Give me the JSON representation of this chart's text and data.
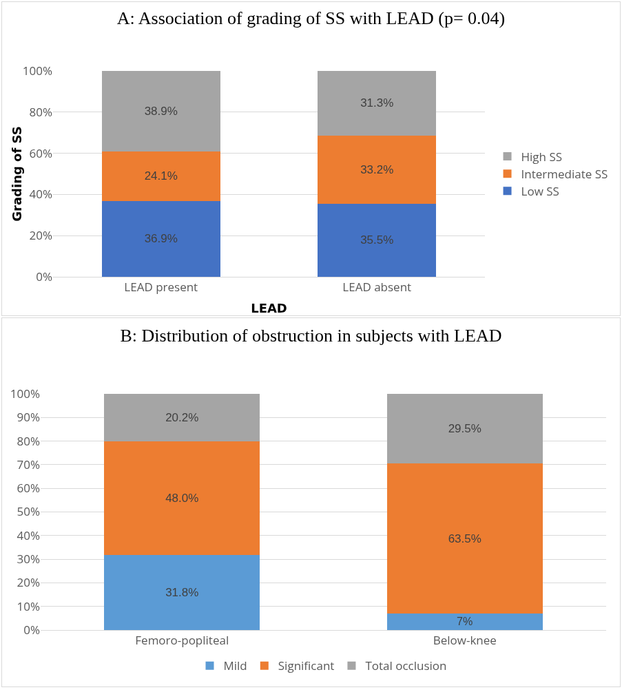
{
  "chart_data": [
    {
      "type": "bar",
      "title": "A: Association of grading of SS with LEAD (p= 0.04)",
      "xlabel": "LEAD",
      "ylabel": "Grading of SS",
      "categories": [
        "LEAD present",
        "LEAD absent"
      ],
      "stacked": true,
      "ylim": [
        0,
        100
      ],
      "yticks": [
        {
          "value": 0,
          "label": "0%"
        },
        {
          "value": 20,
          "label": "20%"
        },
        {
          "value": 40,
          "label": "40%"
        },
        {
          "value": 60,
          "label": "60%"
        },
        {
          "value": 80,
          "label": "80%"
        },
        {
          "value": 100,
          "label": "100%"
        }
      ],
      "grid": "y",
      "legend": "right",
      "series": [
        {
          "name": "Low SS",
          "color": "#4472c4",
          "values": [
            36.9,
            35.5
          ],
          "value_labels": [
            "36.9%",
            "35.5%"
          ]
        },
        {
          "name": "Intermediate SS",
          "color": "#ed7d31",
          "values": [
            24.1,
            33.2
          ],
          "value_labels": [
            "24.1%",
            "33.2%"
          ]
        },
        {
          "name": "High SS",
          "color": "#a5a5a5",
          "values": [
            38.9,
            31.3
          ],
          "value_labels": [
            "38.9%",
            "31.3%"
          ]
        }
      ]
    },
    {
      "type": "bar",
      "title": "B: Distribution of obstruction in subjects with LEAD",
      "categories": [
        "Femoro-popliteal",
        "Below-knee"
      ],
      "stacked": true,
      "ylim": [
        0,
        100
      ],
      "yticks": [
        {
          "value": 0,
          "label": "0%"
        },
        {
          "value": 10,
          "label": "10%"
        },
        {
          "value": 20,
          "label": "20%"
        },
        {
          "value": 30,
          "label": "30%"
        },
        {
          "value": 40,
          "label": "40%"
        },
        {
          "value": 50,
          "label": "50%"
        },
        {
          "value": 60,
          "label": "60%"
        },
        {
          "value": 70,
          "label": "70%"
        },
        {
          "value": 80,
          "label": "80%"
        },
        {
          "value": 90,
          "label": "90%"
        },
        {
          "value": 100,
          "label": "100%"
        }
      ],
      "grid": "y",
      "legend": "bottom",
      "series": [
        {
          "name": "Mild",
          "color": "#5b9bd5",
          "values": [
            31.8,
            7
          ],
          "value_labels": [
            "31.8%",
            "7%"
          ]
        },
        {
          "name": "Significant",
          "color": "#ed7d31",
          "values": [
            48.0,
            63.5
          ],
          "value_labels": [
            "48.0%",
            "63.5%"
          ]
        },
        {
          "name": "Total occlusion",
          "color": "#a5a5a5",
          "values": [
            20.2,
            29.5
          ],
          "value_labels": [
            "20.2%",
            "29.5%"
          ]
        }
      ]
    }
  ]
}
